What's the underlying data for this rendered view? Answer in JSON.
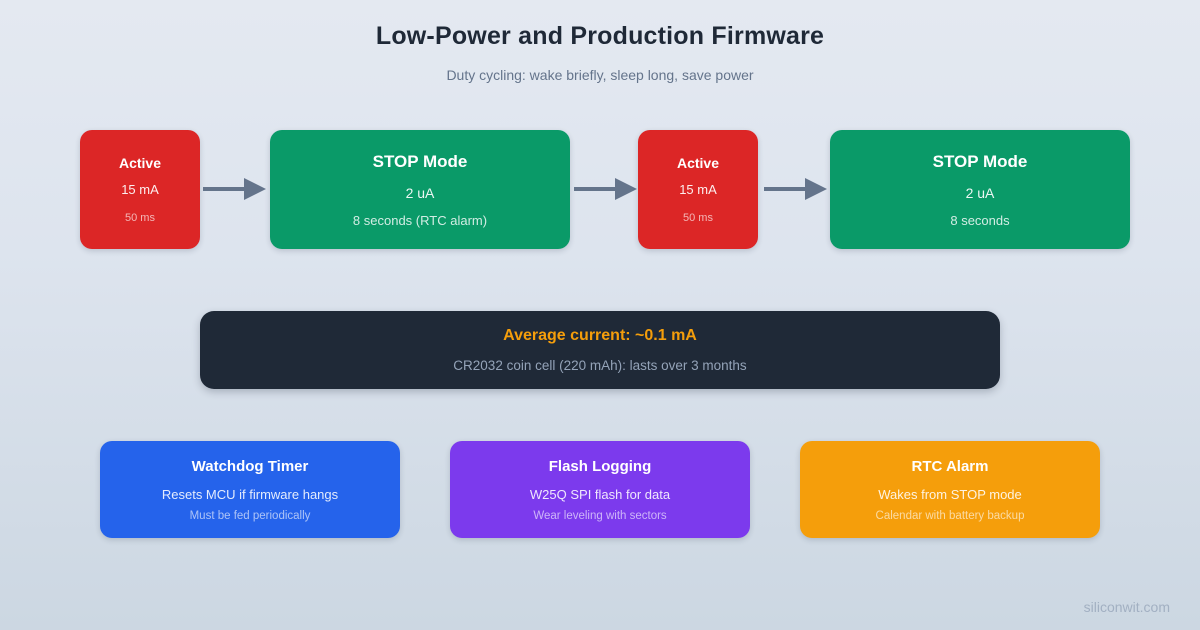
{
  "header": {
    "title": "Low-Power and Production Firmware",
    "subtitle": "Duty cycling: wake briefly, sleep long, save power"
  },
  "flow": {
    "nodes": [
      {
        "title": "Active",
        "line1": "15 mA",
        "line2": "50 ms",
        "color": "#dc2626"
      },
      {
        "title": "STOP Mode",
        "line1": "2 uA",
        "line2": "8 seconds (RTC alarm)",
        "color": "#0a9a68"
      },
      {
        "title": "Active",
        "line1": "15 mA",
        "line2": "50 ms",
        "color": "#dc2626"
      },
      {
        "title": "STOP Mode",
        "line1": "2 uA",
        "line2": "8 seconds",
        "color": "#0a9a68"
      }
    ],
    "arrow_color": "#64748b"
  },
  "summary": {
    "headline": "Average current: ~0.1 mA",
    "detail": "CR2032 coin cell (220 mAh): lasts over 3 months",
    "background": "#1f2937",
    "accent": "#f59e0b"
  },
  "features": [
    {
      "title": "Watchdog Timer",
      "line1": "Resets MCU if firmware hangs",
      "line2": "Must be fed periodically",
      "color": "#2563eb"
    },
    {
      "title": "Flash Logging",
      "line1": "W25Q SPI flash for data",
      "line2": "Wear leveling with sectors",
      "color": "#7c3aed"
    },
    {
      "title": "RTC Alarm",
      "line1": "Wakes from STOP mode",
      "line2": "Calendar with battery backup",
      "color": "#f59e0b"
    }
  ],
  "footer": {
    "watermark": "siliconwit.com"
  }
}
